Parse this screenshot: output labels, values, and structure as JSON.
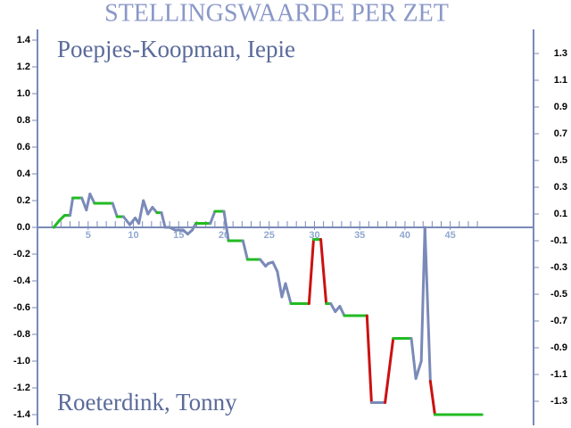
{
  "chart_data": {
    "type": "line",
    "title": "STELLINGSWAARDE PER ZET",
    "labels": [
      "Poepjes-Koopman, Iepie",
      "Roeterdink, Tonny"
    ],
    "x": [
      1.2,
      1.8,
      2.4,
      3.0,
      3.3,
      4.3,
      4.8,
      5.2,
      5.7,
      7.7,
      8.2,
      8.9,
      9.6,
      10.2,
      10.6,
      11.1,
      11.6,
      12.1,
      12.6,
      13.1,
      13.5,
      14.0,
      14.6,
      15.5,
      16.0,
      16.5,
      16.9,
      18.5,
      19.0,
      20.0,
      20.5,
      22.1,
      22.6,
      24.0,
      24.6,
      24.9,
      25.4,
      25.9,
      26.4,
      26.8,
      27.4,
      29.4,
      29.9,
      30.7,
      31.3,
      31.8,
      32.3,
      32.8,
      33.3,
      35.8,
      36.3,
      37.8,
      38.7,
      40.7,
      41.2,
      41.8,
      42.2,
      42.8,
      43.3,
      48.5
    ],
    "series": [
      {
        "values": [
          0,
          0.05,
          0.09,
          0.09,
          0.22,
          0.22,
          0.13,
          0.25,
          0.18,
          0.18,
          0.08,
          0.08,
          0.02,
          0.07,
          0.03,
          0.2,
          0.1,
          0.15,
          0.11,
          0.11,
          0,
          0,
          -0.02,
          -0.02,
          -0.05,
          -0.02,
          0.03,
          0.03,
          0.12,
          0.12,
          -0.1,
          -0.1,
          -0.24,
          -0.24,
          -0.29,
          -0.27,
          -0.26,
          -0.33,
          -0.52,
          -0.42,
          -0.57,
          -0.57,
          -0.09,
          -0.09,
          -0.57,
          -0.57,
          -0.63,
          -0.59,
          -0.66,
          -0.66,
          -1.31,
          -1.31,
          -0.83,
          -0.83,
          -1.13,
          -1.0,
          0,
          -1.15,
          -1.4,
          -1.4
        ],
        "segment_colors": [
          "#22bb22",
          "#22bb22",
          "#22bb22",
          "#7a8ab8",
          "#22bb22",
          "#7a8ab8",
          "#7a8ab8",
          "#7a8ab8",
          "#22bb22",
          "#7a8ab8",
          "#22bb22",
          "#7a8ab8",
          "#7a8ab8",
          "#7a8ab8",
          "#7a8ab8",
          "#7a8ab8",
          "#7a8ab8",
          "#7a8ab8",
          "#22bb22",
          "#7a8ab8",
          "#7a8ab8",
          "#7a8ab8",
          "#7a8ab8",
          "#7a8ab8",
          "#7a8ab8",
          "#7a8ab8",
          "#22bb22",
          "#7a8ab8",
          "#22bb22",
          "#7a8ab8",
          "#22bb22",
          "#7a8ab8",
          "#22bb22",
          "#7a8ab8",
          "#7a8ab8",
          "#7a8ab8",
          "#7a8ab8",
          "#7a8ab8",
          "#7a8ab8",
          "#7a8ab8",
          "#22bb22",
          "#cc1111",
          "#22bb22",
          "#cc1111",
          "#22bb22",
          "#7a8ab8",
          "#7a8ab8",
          "#7a8ab8",
          "#22bb22",
          "#cc1111",
          "#7a8ab8",
          "#cc1111",
          "#22bb22",
          "#7a8ab8",
          "#7a8ab8",
          "#7a8ab8",
          "#7a8ab8",
          "#cc1111",
          "#22bb22"
        ]
      }
    ],
    "xlim": [
      -0.6,
      54.2
    ],
    "xticks": [
      5,
      10,
      15,
      20,
      25,
      30,
      35,
      40,
      45
    ],
    "xminorticks": [
      1,
      2,
      3,
      4,
      5,
      6,
      7,
      8,
      9,
      10,
      11,
      12,
      13,
      14,
      15,
      16,
      17,
      18,
      19,
      20,
      21,
      22,
      23,
      24,
      25,
      26,
      27,
      28,
      29,
      30,
      31,
      32,
      33,
      34,
      35,
      36,
      37,
      38,
      39,
      40,
      41,
      42,
      43,
      44,
      45,
      46,
      47,
      48
    ],
    "ylim": [
      -1.48,
      1.48
    ],
    "yticks": [
      1.4,
      1.2,
      {
        "value": 1,
        "label": "1.0"
      },
      0.8,
      0.6,
      0.4,
      0.2,
      {
        "value": 0,
        "label": "0.0"
      },
      -0.2,
      -0.4,
      -0.6,
      -0.8,
      {
        "value": -1,
        "label": "-1.0"
      },
      -1.2,
      -1.4
    ],
    "y2lim": [
      -1.48,
      1.48
    ],
    "y2ticks": [
      1.3,
      1.1,
      0.9,
      0.7,
      0.5,
      0.3,
      0.1,
      -0.1,
      -0.3,
      -0.5,
      -0.7,
      -0.9,
      -1.1,
      -1.3
    ]
  }
}
